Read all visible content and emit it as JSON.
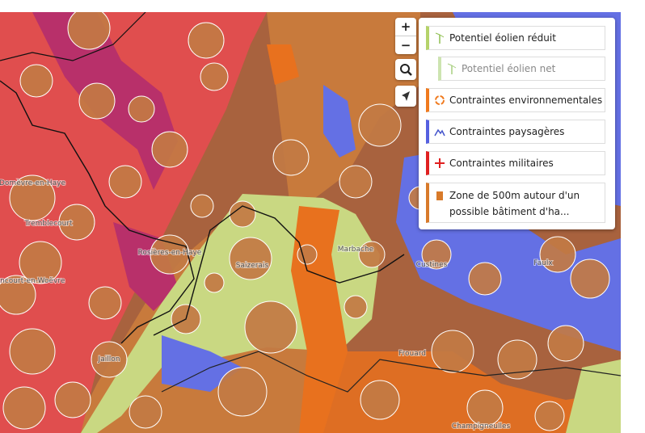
{
  "map": {
    "controls": {
      "zoom_in": "+",
      "zoom_out": "−"
    },
    "places": [
      "Saizerais",
      "Jaillon",
      "Frouard",
      "Faulx",
      "Marbache",
      "Custines",
      "Champigneulles",
      "Rosières-en-Haye",
      "Tremblecourt",
      "Domèvre-en-Haye",
      "Manoncourt-en-Woëvre"
    ],
    "legend": [
      "Potentiel éolien réduit",
      "Potentiel éolien net",
      "Contraintes environnementales",
      "Contraintes paysagères",
      "Contraintes militaires",
      "Zone de 500m autour d'un possible bâtiment d'ha..."
    ]
  }
}
